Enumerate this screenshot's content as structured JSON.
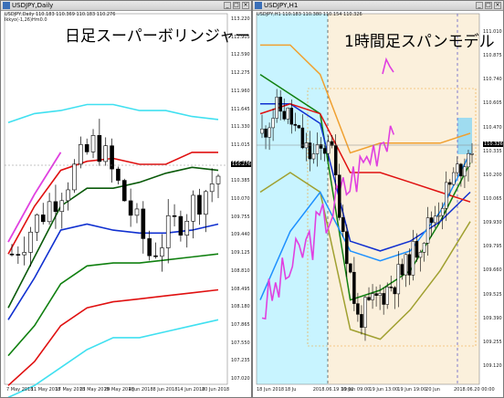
{
  "left": {
    "window_title": "USDJPY,Daily",
    "info_line": "USDJPY,Daily  110.183 110.369 110.183 110.276",
    "indicator_line": "Ikkyo(-1,26)Hm0.0",
    "big_title": "日足スーパーボリンジャー",
    "current_price": "110.276",
    "y_ticks": [
      "113.220",
      "112.905",
      "112.590",
      "112.275",
      "111.960",
      "111.645",
      "111.330",
      "111.015",
      "110.700",
      "110.385",
      "110.070",
      "109.755",
      "109.440",
      "109.125",
      "108.810",
      "108.495",
      "108.180",
      "107.865",
      "107.550",
      "107.235",
      "107.020"
    ],
    "x_ticks": [
      "7 May 2018",
      "11 May 2018",
      "17 May 2018",
      "23 May 2018",
      "29 May 2018",
      "4 Jun 2018",
      "8 Jun 2018",
      "14 Jun 2018",
      "20 Jun 2018"
    ]
  },
  "right": {
    "window_title": "USDJPY,H1",
    "info_line": "USDJPY,H1  110.183 110.380 110.154 110.326",
    "big_title": "1時間足スパンモデル",
    "current_price": "110.326",
    "y_ticks": [
      "111.010",
      "110.875",
      "110.740",
      "110.605",
      "110.470",
      "110.335",
      "110.200",
      "110.065",
      "109.930",
      "109.795",
      "109.660",
      "109.525",
      "109.390",
      "109.255",
      "109.120"
    ],
    "x_ticks": [
      "18 Jun 2018",
      "18 Ju",
      "2018.06.19 10:00",
      "19 Jun 09:00",
      "19 Jun 13:00",
      "19 Jun 19:00",
      "20 Jun",
      "2018.06.20 00:00"
    ]
  },
  "chart_data": [
    {
      "type": "line",
      "title": "日足スーパーボリンジャー",
      "note": "USDJPY Daily candles with Super Bollinger bands",
      "xlabel": "",
      "ylabel": "",
      "ylim": [
        107.02,
        113.22
      ],
      "x": [
        "7 May 2018",
        "11 May 2018",
        "17 May 2018",
        "23 May 2018",
        "29 May 2018",
        "4 Jun 2018",
        "8 Jun 2018",
        "14 Jun 2018",
        "20 Jun 2018"
      ],
      "series": [
        {
          "values": [
            111.4,
            111.55,
            111.6,
            111.7,
            111.7,
            111.6,
            111.6,
            111.5,
            111.45
          ]
        },
        {
          "values": [
            109.2,
            110.0,
            110.6,
            110.75,
            110.8,
            110.7,
            110.7,
            110.9,
            110.9
          ]
        },
        {
          "values": [
            108.3,
            109.15,
            110.0,
            110.3,
            110.3,
            110.4,
            110.55,
            110.65,
            110.6
          ]
        },
        {
          "values": [
            108.1,
            108.8,
            109.6,
            109.7,
            109.6,
            109.55,
            109.55,
            109.6,
            109.7
          ]
        },
        {
          "values": [
            107.5,
            108.0,
            108.7,
            109.0,
            109.05,
            109.05,
            109.1,
            109.15,
            109.2
          ]
        },
        {
          "values": [
            107.0,
            107.4,
            108.0,
            108.3,
            108.4,
            108.45,
            108.5,
            108.55,
            108.6
          ]
        },
        {
          "values": [
            106.8,
            107.0,
            107.3,
            107.6,
            107.8,
            107.8,
            107.9,
            108.0,
            108.1
          ]
        },
        {
          "values": [
            109.4,
            110.2,
            110.9,
            null,
            null,
            null,
            null,
            null,
            null
          ]
        }
      ]
    },
    {
      "type": "line",
      "title": "1時間足スパンモデル",
      "note": "USDJPY H1 candles with Span Model",
      "xlabel": "",
      "ylabel": "",
      "ylim": [
        109.12,
        111.01
      ],
      "x": [
        "18 Jun 2018",
        "18 Ju",
        "2018.06.19 10:00",
        "19 Jun 09:00",
        "19 Jun 13:00",
        "19 Jun 19:00",
        "20 Jun",
        "2018.06.20 00:00"
      ],
      "series": [
        {
          "values": [
            110.7,
            110.6,
            110.5,
            109.55,
            109.6,
            109.7,
            109.95,
            110.25
          ]
        },
        {
          "values": [
            110.55,
            110.55,
            110.45,
            109.85,
            109.8,
            109.85,
            109.95,
            110.1
          ]
        },
        {
          "values": [
            110.5,
            110.55,
            110.5,
            110.2,
            110.2,
            110.15,
            110.1,
            110.05
          ]
        },
        {
          "values": [
            110.85,
            110.85,
            110.7,
            110.3,
            110.35,
            110.35,
            110.35,
            110.4
          ]
        },
        {
          "values": [
            110.1,
            110.2,
            110.1,
            109.4,
            109.35,
            109.5,
            109.7,
            109.95
          ]
        },
        {
          "values": [
            109.55,
            109.9,
            110.1,
            109.8,
            109.75,
            109.8,
            110.0,
            110.3
          ]
        }
      ]
    }
  ],
  "colors": {
    "cyan": "#40e0f0",
    "red": "#e01010",
    "green": "#108010",
    "darkgreen": "#0a5a0a",
    "blue": "#1030d0",
    "magenta": "#e040e0",
    "orange": "#f0a030",
    "lightblue": "#c8f4ff",
    "cream": "#fbf0dc",
    "olive": "#a0a030"
  }
}
